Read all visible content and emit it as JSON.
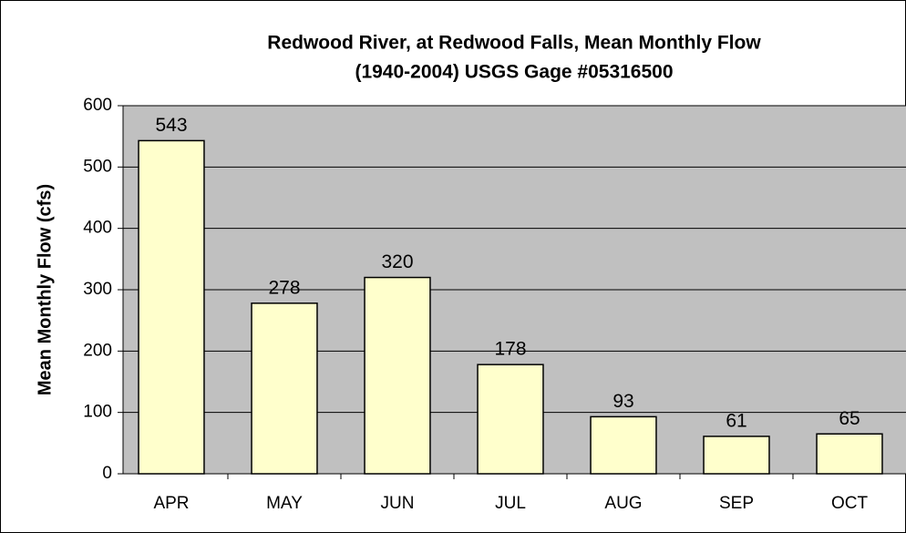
{
  "chart_data": {
    "type": "bar",
    "title": [
      "Redwood River, at Redwood Falls, Mean Monthly Flow",
      "(1940-2004) USGS Gage #05316500"
    ],
    "y_label": "Mean Monthly Flow (cfs)",
    "categories": [
      "APR",
      "MAY",
      "JUN",
      "JUL",
      "AUG",
      "SEP",
      "OCT"
    ],
    "values": [
      543,
      278,
      320,
      178,
      93,
      61,
      65
    ],
    "color": "#ffffcc",
    "ylim": [
      0,
      600
    ],
    "yticks": [
      0,
      100,
      200,
      300,
      400,
      500,
      600
    ],
    "grid": true
  }
}
